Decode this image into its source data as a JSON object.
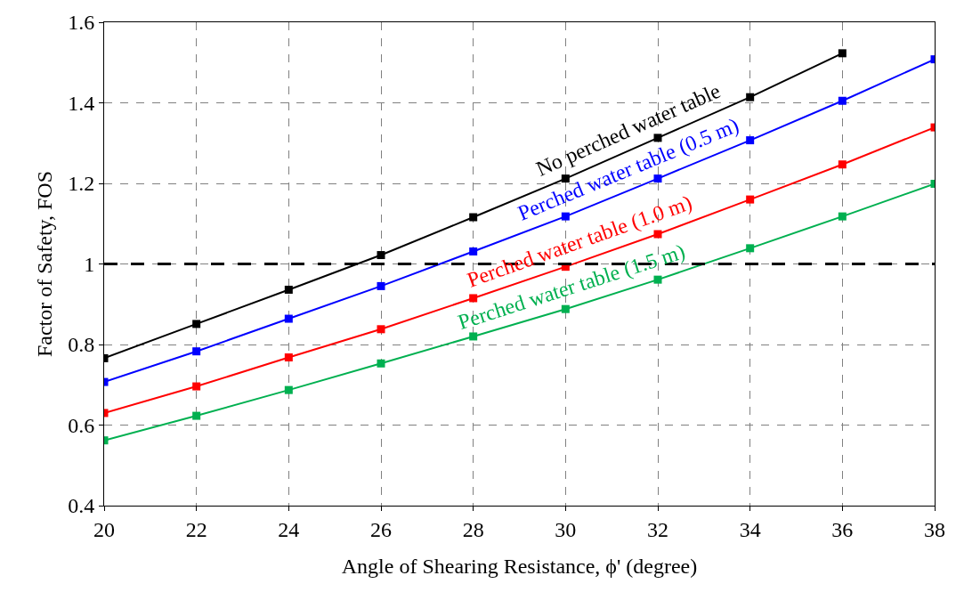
{
  "chart_data": {
    "type": "line",
    "xlabel": "Angle of Shearing Resistance, ϕ' (degree)",
    "ylabel": "Factor of Safety, FOS",
    "x": [
      20,
      22,
      24,
      26,
      28,
      30,
      32,
      34,
      36,
      38
    ],
    "series": [
      {
        "name": "No perched water table",
        "color": "#000000",
        "values": [
          0.766,
          0.851,
          0.936,
          1.022,
          1.116,
          1.212,
          1.313,
          1.414,
          1.523,
          null
        ]
      },
      {
        "name": "Perched water table (0.5 m)",
        "color": "#0000ff",
        "values": [
          0.707,
          0.783,
          0.864,
          0.945,
          1.031,
          1.118,
          1.212,
          1.307,
          1.405,
          1.508
        ]
      },
      {
        "name": "Perched water table (1.0 m)",
        "color": "#ff0000",
        "values": [
          0.63,
          0.696,
          0.768,
          0.838,
          0.915,
          0.993,
          1.074,
          1.16,
          1.247,
          1.339
        ]
      },
      {
        "name": "Perched water table (1.5 m)",
        "color": "#00b050",
        "values": [
          0.562,
          0.623,
          0.687,
          0.753,
          0.82,
          0.888,
          0.961,
          1.039,
          1.118,
          1.199
        ]
      }
    ],
    "xlim": [
      20,
      38
    ],
    "xticks": [
      20,
      22,
      24,
      26,
      28,
      30,
      32,
      34,
      36,
      38
    ],
    "ylim": [
      0.4,
      1.6
    ],
    "yticks": [
      0.4,
      0.6,
      0.8,
      1,
      1.2,
      1.4,
      1.6
    ],
    "ref_lines": [
      {
        "axis": "y",
        "value": 1,
        "color": "#000000",
        "line_style": "dashed"
      }
    ],
    "grid": true,
    "legend": false,
    "marker": "square",
    "line_style": "solid"
  }
}
